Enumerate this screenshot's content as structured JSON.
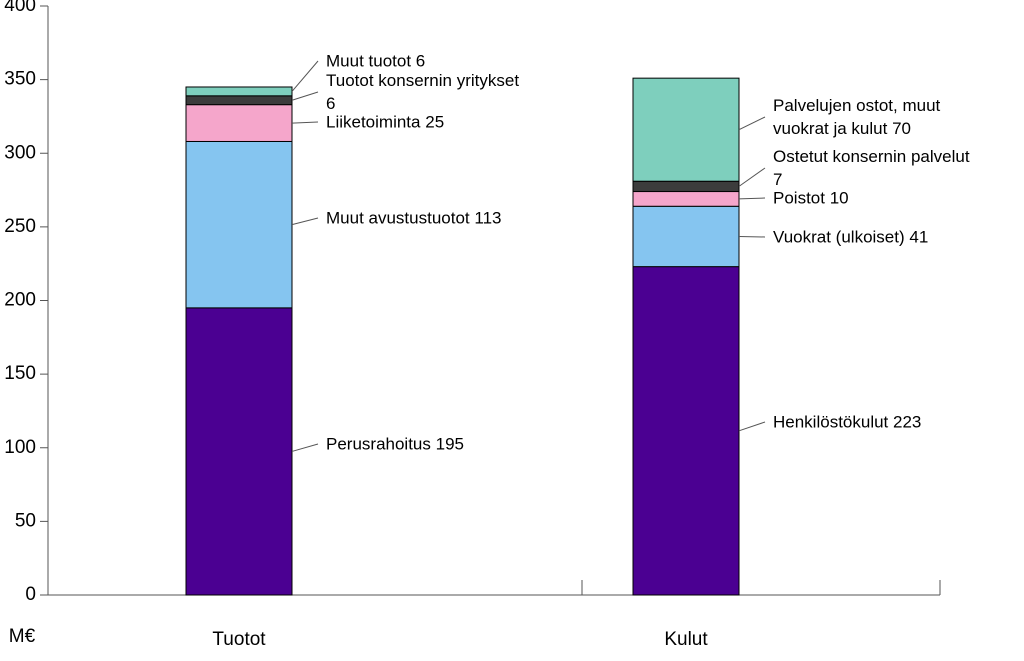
{
  "chart_data": {
    "type": "stacked_bar",
    "ylabel": "M€",
    "categories": [
      "Tuotot",
      "Kulut"
    ],
    "ylim": [
      0,
      400
    ],
    "yticks": [
      0,
      50,
      100,
      150,
      200,
      250,
      300,
      350,
      400
    ],
    "series": [
      {
        "name": "Perusrahoitus",
        "color": "#4b0092",
        "values": [
          195,
          null
        ]
      },
      {
        "name": "Muut avustustuotot",
        "color": "#85c5f0",
        "values": [
          113,
          null
        ]
      },
      {
        "name": "Liiketoiminta",
        "color": "#f5a6cb",
        "values": [
          25,
          null
        ]
      },
      {
        "name": "Tuotot konsernin yritykset",
        "color": "#3c3c3c",
        "values": [
          6,
          null
        ]
      },
      {
        "name": "Muut tuotot",
        "color": "#7ecfbd",
        "values": [
          6,
          null
        ]
      },
      {
        "name": "Henkilöstökulut",
        "color": "#4b0092",
        "values": [
          null,
          223
        ]
      },
      {
        "name": "Vuokrat (ulkoiset)",
        "color": "#85c5f0",
        "values": [
          null,
          41
        ]
      },
      {
        "name": "Poistot",
        "color": "#f5a6cb",
        "values": [
          null,
          10
        ]
      },
      {
        "name": "Ostetut konsernin palvelut",
        "color": "#3c3c3c",
        "values": [
          null,
          7
        ]
      },
      {
        "name": "Palvelujen ostot, muut vuokrat ja kulut",
        "color": "#7ecfbd",
        "values": [
          null,
          70
        ]
      }
    ]
  }
}
